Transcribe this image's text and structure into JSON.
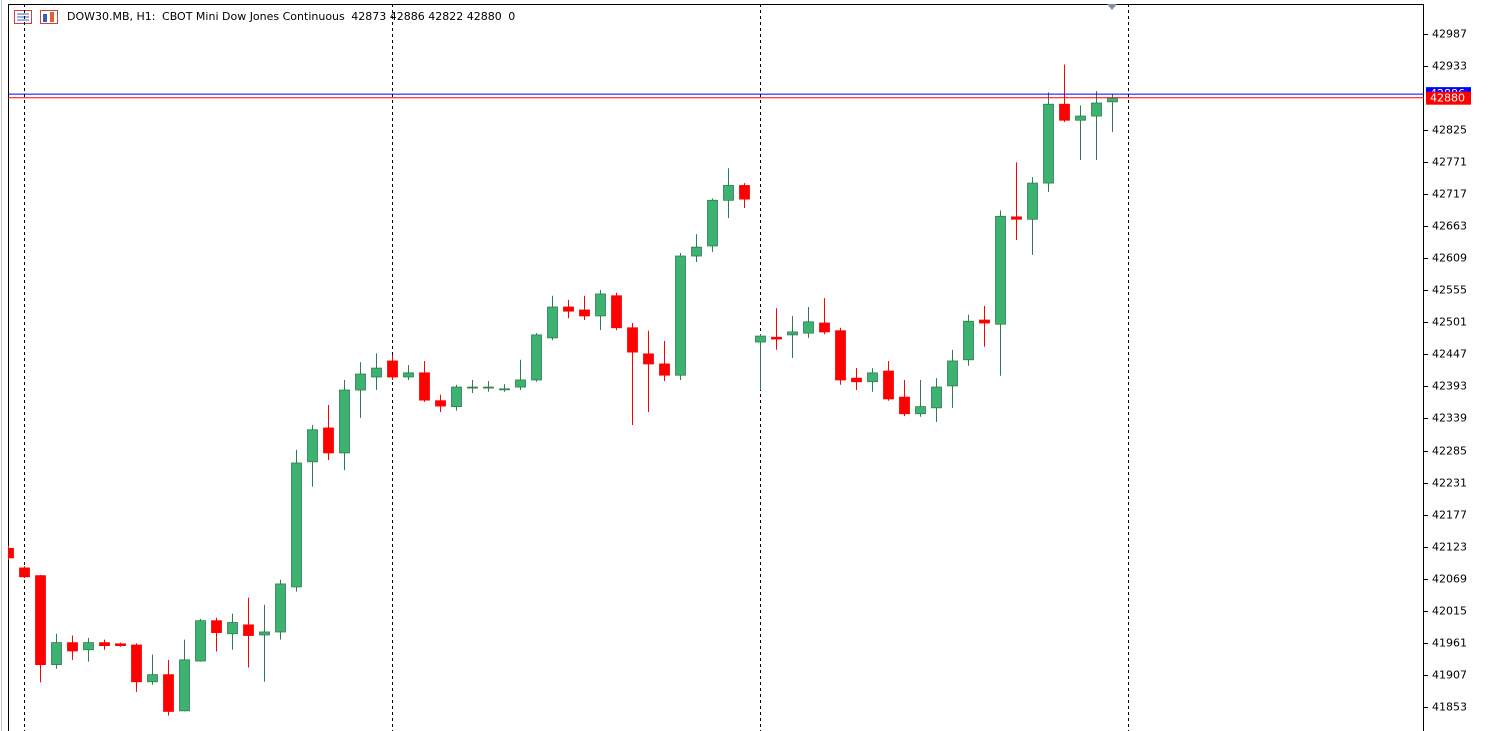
{
  "chart_data": {
    "type": "candlestick",
    "symbol": "DOW30.MB, H1:",
    "description": "CBOT Mini Dow Jones Continuous",
    "volume": 0,
    "open": [
      42120,
      42087,
      42074,
      41924,
      41961,
      41949,
      41961,
      41959,
      41957,
      41895,
      41907,
      41846,
      41930,
      41998,
      41976,
      41991,
      41974,
      41979,
      42055,
      42266,
      42323,
      42281,
      42387,
      42409,
      42436,
      42409,
      42416,
      42369,
      42359,
      42392,
      42392,
      42389,
      42392,
      42404,
      42475,
      42527,
      42522,
      42512,
      42546,
      42492,
      42448,
      42431,
      42412,
      42613,
      42630,
      42707,
      42732,
      42468,
      42476,
      42480,
      42483,
      42500,
      42487,
      42407,
      42401,
      42419,
      42375,
      42347,
      42357,
      42394,
      42438,
      42505,
      42498,
      42679,
      42675,
      42736,
      42869,
      42842,
      42849,
      42873
    ],
    "high": [
      42125,
      42090,
      42075,
      41976,
      41973,
      41969,
      41966,
      41961,
      41960,
      41941,
      41932,
      41966,
      42001,
      42003,
      42010,
      42037,
      42025,
      42067,
      42286,
      42328,
      42362,
      42404,
      42434,
      42449,
      42446,
      42429,
      42436,
      42379,
      42396,
      42404,
      42402,
      42397,
      42438,
      42483,
      42546,
      42539,
      42546,
      42556,
      42551,
      42500,
      42487,
      42470,
      42618,
      42650,
      42710,
      42761,
      42736,
      42481,
      42525,
      42512,
      42527,
      42542,
      42492,
      42424,
      42424,
      42436,
      42404,
      42404,
      42407,
      42455,
      42514,
      42529,
      42690,
      42771,
      42746,
      42889,
      42936,
      42867,
      42891,
      42886
    ],
    "low": [
      42100,
      42070,
      41894,
      41917,
      41932,
      41929,
      41949,
      41954,
      41878,
      41890,
      41838,
      41845,
      41929,
      41946,
      41949,
      41919,
      41895,
      41966,
      42047,
      42224,
      42269,
      42252,
      42340,
      42387,
      42404,
      42404,
      42367,
      42350,
      42352,
      42382,
      42384,
      42384,
      42387,
      42401,
      42471,
      42508,
      42505,
      42488,
      42488,
      42328,
      42350,
      42402,
      42404,
      42603,
      42620,
      42677,
      42694,
      42387,
      42455,
      42441,
      42475,
      42481,
      42396,
      42387,
      42384,
      42369,
      42343,
      42342,
      42333,
      42357,
      42428,
      42460,
      42411,
      42640,
      42615,
      42721,
      42839,
      42775,
      42775,
      42822
    ],
    "close": [
      42104,
      42072,
      41924,
      41961,
      41947,
      41961,
      41956,
      41956,
      41895,
      41907,
      41845,
      41932,
      41998,
      41978,
      41995,
      41973,
      41979,
      42060,
      42264,
      42320,
      42281,
      42387,
      42414,
      42424,
      42409,
      42416,
      42370,
      42360,
      42392,
      42392,
      42392,
      42389,
      42404,
      42480,
      42527,
      42520,
      42512,
      42549,
      42492,
      42451,
      42431,
      42412,
      42613,
      42628,
      42707,
      42732,
      42709,
      42478,
      42473,
      42485,
      42502,
      42485,
      42404,
      42401,
      42416,
      42372,
      42347,
      42359,
      42392,
      42436,
      42503,
      42500,
      42680,
      42675,
      42736,
      42869,
      42842,
      42849,
      42871,
      42880
    ],
    "ylim": [
      41812,
      43038
    ],
    "yticks": [
      42987,
      42933,
      42825,
      42771,
      42717,
      42663,
      42609,
      42555,
      42501,
      42447,
      42393,
      42339,
      42285,
      42231,
      42177,
      42123,
      42069,
      42015,
      41961,
      41907,
      41853
    ],
    "bid": 42880,
    "ask": 42886,
    "period_separators": [
      1,
      24,
      47,
      70
    ],
    "colors": {
      "bull": "#3cb371",
      "bear": "#ff0000",
      "bid": "#ff0000",
      "ask": "#0000ff"
    },
    "grid": false
  }
}
